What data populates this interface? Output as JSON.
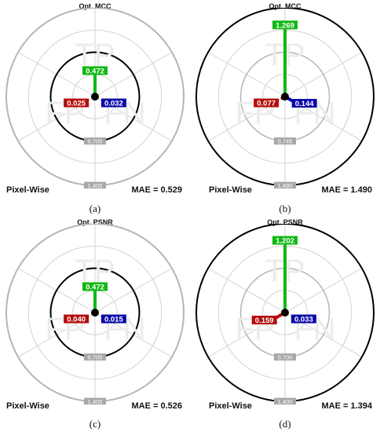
{
  "colors": {
    "tp": "#11b811",
    "fp": "#b40d0d",
    "fn": "#0a0aa8",
    "ring_gray": "#b5b5b5",
    "ring_black": "#000000",
    "watermark": "#ececec"
  },
  "watermark_labels": {
    "tp": "TP",
    "fp": "FP",
    "fn": "FN"
  },
  "charts": [
    {
      "title": "Opt. MCC",
      "caption": "(a)",
      "footer_left": "Pixel-Wise",
      "footer_right": "MAE = 0.529",
      "ring_labels": [
        "0.700",
        "1.400"
      ],
      "black_ring": "inner"
    },
    {
      "title": "Opt. MCC",
      "caption": "(b)",
      "footer_left": "Pixel-Wise",
      "footer_right": "MAE = 1.490",
      "ring_labels": [
        "0.745",
        "1.490"
      ],
      "black_ring": "outer"
    },
    {
      "title": "Opt. PSNR",
      "caption": "(c)",
      "footer_left": "Pixel-Wise",
      "footer_right": "MAE = 0.526",
      "ring_labels": [
        "0.700",
        "1.400"
      ],
      "black_ring": "inner"
    },
    {
      "title": "Opt. PSNR",
      "caption": "(d)",
      "footer_left": "Pixel-Wise",
      "footer_right": "MAE = 1.394",
      "ring_labels": [
        "0.700",
        "1.400"
      ],
      "black_ring": "outer"
    }
  ],
  "chart_data": [
    {
      "type": "radar",
      "title": "Opt. MCC",
      "series": [
        {
          "name": "TP",
          "value": 0.472
        },
        {
          "name": "FP",
          "value": 0.025
        },
        {
          "name": "FN",
          "value": 0.032
        }
      ],
      "rmax": 1.4,
      "rings": [
        0.7,
        1.4
      ]
    },
    {
      "type": "radar",
      "title": "Opt. MCC",
      "series": [
        {
          "name": "TP",
          "value": 1.269
        },
        {
          "name": "FP",
          "value": 0.077
        },
        {
          "name": "FN",
          "value": 0.144
        }
      ],
      "rmax": 1.49,
      "rings": [
        0.745,
        1.49
      ]
    },
    {
      "type": "radar",
      "title": "Opt. PSNR",
      "series": [
        {
          "name": "TP",
          "value": 0.472
        },
        {
          "name": "FP",
          "value": 0.04
        },
        {
          "name": "FN",
          "value": 0.015
        }
      ],
      "rmax": 1.4,
      "rings": [
        0.7,
        1.4
      ]
    },
    {
      "type": "radar",
      "title": "Opt. PSNR",
      "series": [
        {
          "name": "TP",
          "value": 1.202
        },
        {
          "name": "FP",
          "value": 0.159
        },
        {
          "name": "FN",
          "value": 0.033
        }
      ],
      "rmax": 1.4,
      "rings": [
        0.7,
        1.4
      ]
    }
  ]
}
